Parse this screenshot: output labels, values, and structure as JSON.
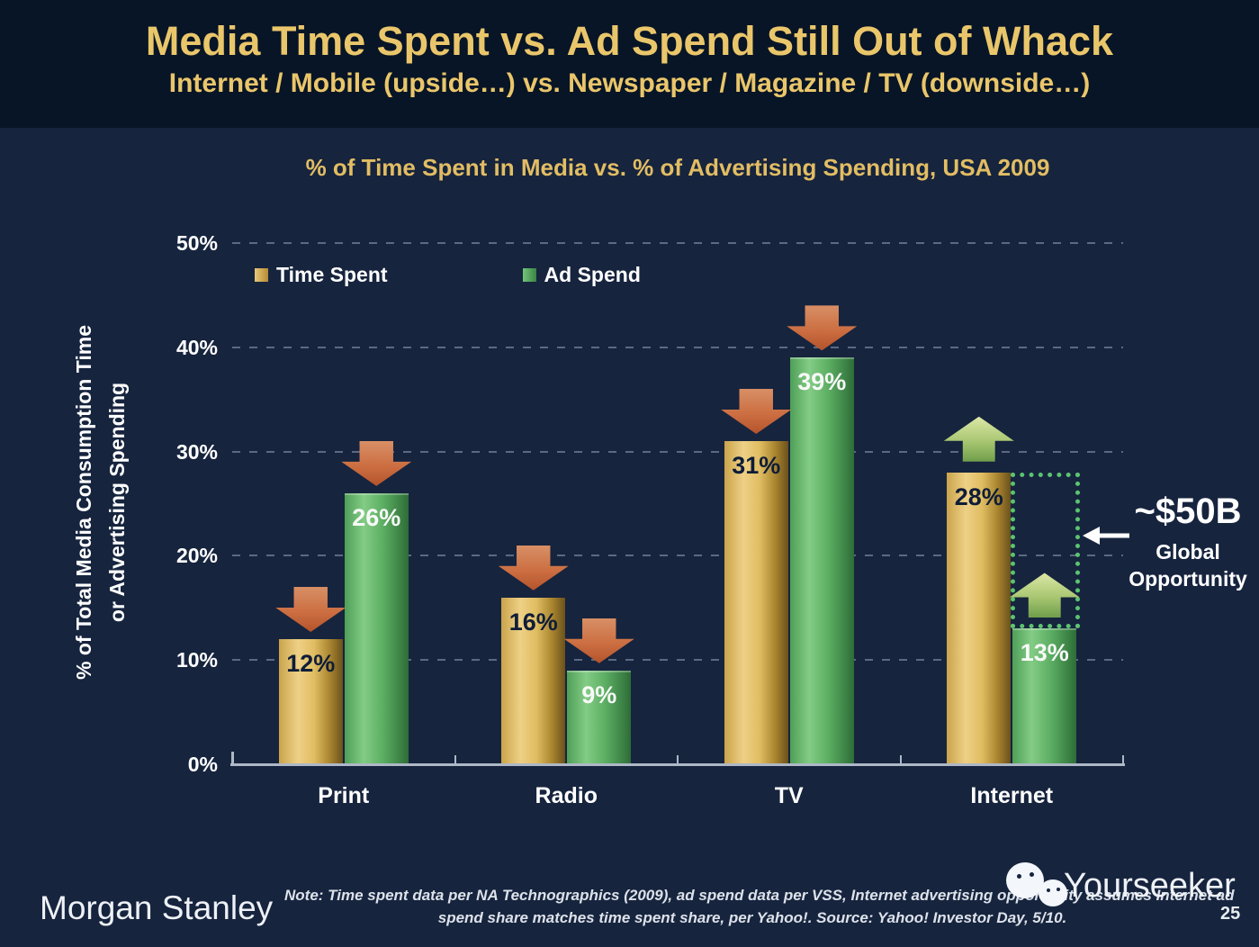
{
  "header": {
    "title": "Media Time Spent vs. Ad Spend Still Out of Whack",
    "subtitle": "Internet / Mobile (upside…) vs. Newspaper / Magazine / TV (downside…)"
  },
  "chart": {
    "title": "% of Time Spent in Media vs. % of Advertising Spending, USA 2009",
    "y_axis_label": [
      "% of Total Media Consumption Time",
      "or Advertising Spending"
    ],
    "y_ticks": [
      "50%",
      "40%",
      "30%",
      "20%",
      "10%",
      "0%"
    ],
    "legend": [
      {
        "label": "Time Spent",
        "color": "#dcb456"
      },
      {
        "label": "Ad Spend",
        "color": "#4fa858"
      }
    ]
  },
  "chart_data": {
    "type": "bar",
    "categories": [
      "Print",
      "Radio",
      "TV",
      "Internet"
    ],
    "series": [
      {
        "name": "Time Spent",
        "values": [
          12,
          16,
          31,
          28
        ],
        "color": "#dcb456"
      },
      {
        "name": "Ad Spend",
        "values": [
          26,
          9,
          39,
          13
        ],
        "color": "#4fa858"
      }
    ],
    "unit": "%",
    "title": "% of Time Spent in Media vs. % of Advertising Spending, USA 2009",
    "xlabel": "",
    "ylabel": "% of Total Media Consumption Time or Advertising Spending",
    "ylim": [
      0,
      50
    ],
    "grid": true,
    "legend_position": "top-left",
    "arrows": [
      {
        "category": "Print",
        "series": 0,
        "direction": "down"
      },
      {
        "category": "Print",
        "series": 1,
        "direction": "down"
      },
      {
        "category": "Radio",
        "series": 0,
        "direction": "down"
      },
      {
        "category": "Radio",
        "series": 1,
        "direction": "down"
      },
      {
        "category": "TV",
        "series": 0,
        "direction": "down"
      },
      {
        "category": "TV",
        "series": 1,
        "direction": "down"
      },
      {
        "category": "Internet",
        "series": 0,
        "direction": "up"
      },
      {
        "category": "Internet",
        "series": 1,
        "direction": "up"
      }
    ],
    "opportunity": {
      "category": "Internet",
      "series": 1,
      "from": 13,
      "to": 28,
      "value_label": "~$50B",
      "label_line1": "Global",
      "label_line2": "Opportunity"
    }
  },
  "colors": {
    "header_bg": "#081526",
    "body_bg": "#16243e",
    "accent_gold": "#e2bd63",
    "down_arrow": "#c06038",
    "up_arrow": "#b5d183",
    "opportunity_outline": "#5bc470"
  },
  "footer": {
    "logo": "Morgan Stanley",
    "note_line1": "Note: Time spent data per NA Technographics (2009), ad spend data per VSS, Internet advertising opportunity assumes Internet ad",
    "note_line2": "spend share matches time spent share, per Yahoo!. Source: Yahoo! Investor Day, 5/10.",
    "watermark": "Yourseeker",
    "page_number": "25"
  }
}
